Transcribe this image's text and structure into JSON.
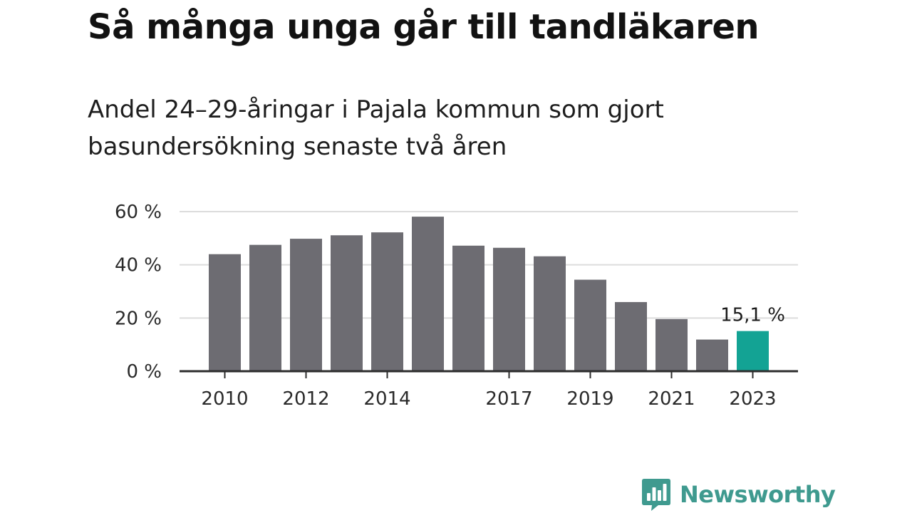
{
  "title": "Så många unga går till tandläkaren",
  "subtitle": "Andel 24–29-åringar i Pajala kommun som gjort basundersökning senaste två åren",
  "brand": {
    "name": "Newsworthy",
    "color": "#3f9a8f"
  },
  "chart_data": {
    "type": "bar",
    "title": "Så många unga går till tandläkaren",
    "subtitle": "Andel 24–29-åringar i Pajala kommun som gjort basundersökning senaste två åren",
    "categories": [
      "2010",
      "2011",
      "2012",
      "2013",
      "2014",
      "2015",
      "2016",
      "2017",
      "2018",
      "2019",
      "2020",
      "2021",
      "2022",
      "2023"
    ],
    "x_tick_labels": [
      "2010",
      "",
      "2012",
      "",
      "2014",
      "",
      "",
      "2017",
      "",
      "2019",
      "",
      "2021",
      "",
      "2023"
    ],
    "values": [
      44,
      47.5,
      49.8,
      51.1,
      52.2,
      58.1,
      47.2,
      46.4,
      43.2,
      34.4,
      26,
      19.6,
      11.9,
      15.1
    ],
    "ylim": [
      0,
      60
    ],
    "y_ticks": [
      0,
      20,
      40,
      60
    ],
    "y_tick_labels": [
      "0 %",
      "20 %",
      "40 %",
      "60 %"
    ],
    "grid": true,
    "colors": {
      "bar": "#6d6c72",
      "highlight": "#13a394",
      "grid": "#dcdcdc",
      "axis": "#2d2d2d"
    },
    "highlight_index": 13,
    "annotation": {
      "index": 13,
      "text": "15,1 %"
    }
  }
}
